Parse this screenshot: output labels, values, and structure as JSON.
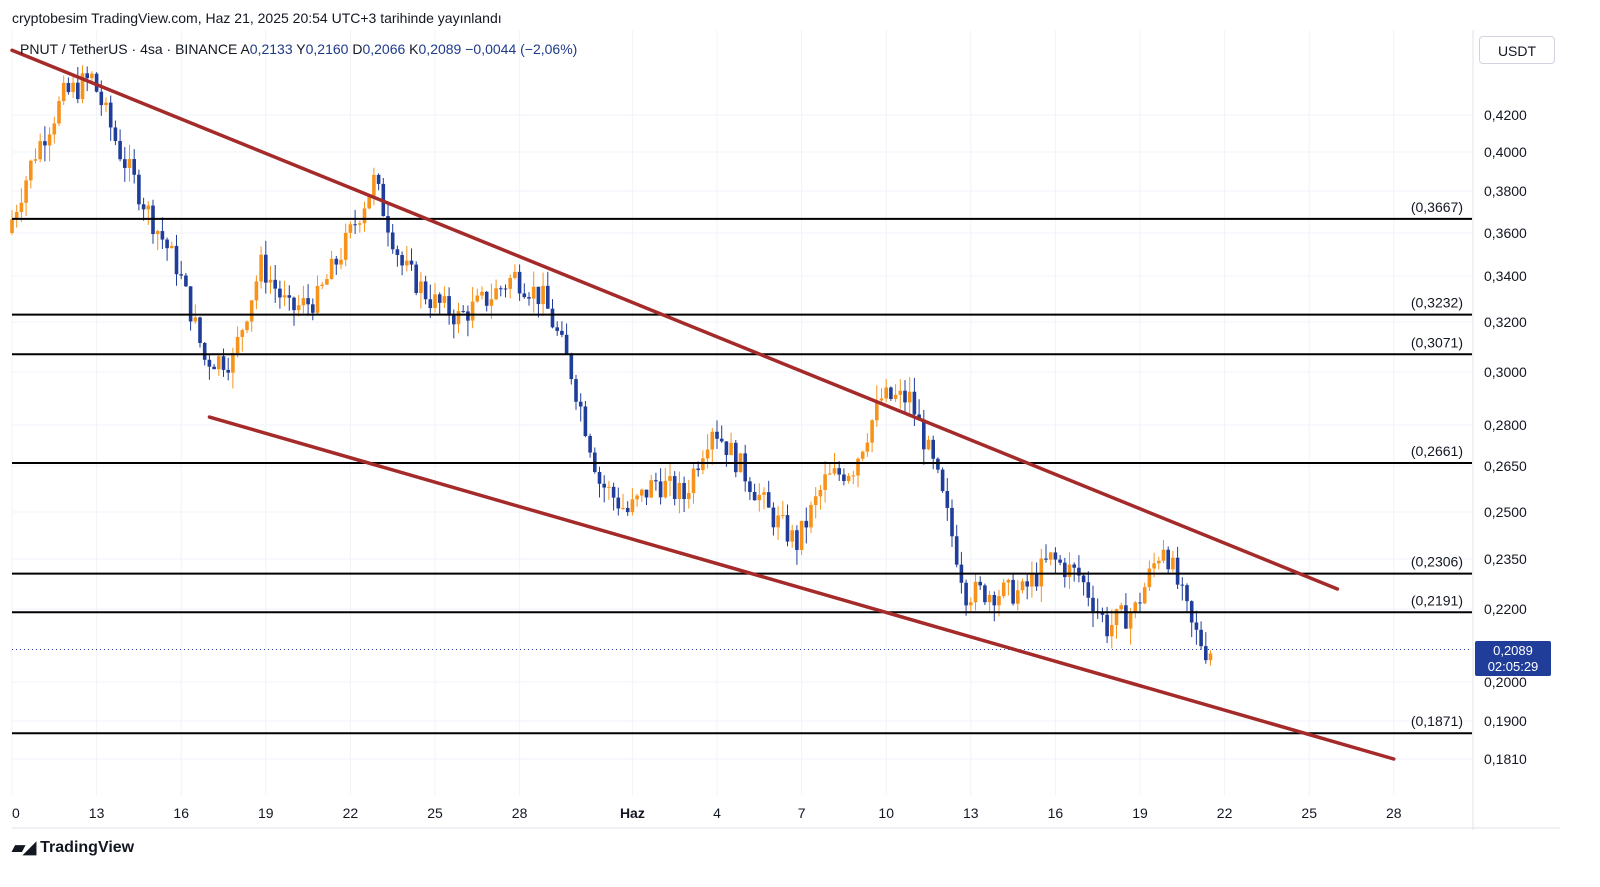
{
  "header": {
    "publisher_line": "cryptobesim TradingView.com, Haz 21, 2025 20:54 UTC+3 tarihinde yayınlandı"
  },
  "legend": {
    "symbol": "PNUT / TetherUS · 4sa · BINANCE",
    "open_label": "A",
    "open": "0,2133",
    "high_label": "Y",
    "high": "0,2160",
    "low_label": "D",
    "low": "0,2066",
    "close_label": "K",
    "close": "0,2089",
    "change": "−0,0044 (−2,06%)"
  },
  "currency": "USDT",
  "price_badge": {
    "price": "0,2089",
    "countdown": "02:05:29"
  },
  "brand": {
    "name": "TradingView",
    "logo_icon": "tradingview-logo-icon"
  },
  "colors": {
    "up": "#f7931a",
    "down": "#1f3d99",
    "trendline": "#a52a2a",
    "level": "#000000",
    "badge": "#1f3d99"
  },
  "chart_data": {
    "type": "candlestick",
    "x_ticks": [
      "0",
      "13",
      "16",
      "19",
      "22",
      "25",
      "28",
      "Haz",
      "4",
      "7",
      "10",
      "13",
      "16",
      "19",
      "22",
      "25",
      "28"
    ],
    "y_ticks": [
      "0,4200",
      "0,4000",
      "0,3800",
      "0,3600",
      "0,3400",
      "0,3200",
      "0,3000",
      "0,2800",
      "0,2650",
      "0,2500",
      "0,2350",
      "0,2200",
      "0,2000",
      "0,1900",
      "0,1810"
    ],
    "levels": [
      "(0,3667)",
      "(0,3232)",
      "(0,3071)",
      "(0,2661)",
      "(0,2306)",
      "(0,2191)",
      "(0,1871)"
    ],
    "current_price": "0,2089",
    "trendlines": [
      {
        "role": "upper",
        "from": [
          "May 10",
          0.455
        ],
        "to": [
          "Jun 26",
          0.226
        ]
      },
      {
        "role": "lower",
        "from": [
          "May 17",
          0.283
        ],
        "to": [
          "Jun 28",
          0.181
        ]
      }
    ],
    "price_path_days": [
      [
        "May 10",
        0.36
      ],
      [
        "May 11",
        0.4
      ],
      [
        "May 12",
        0.43
      ],
      [
        "May 13",
        0.44
      ],
      [
        "May 14",
        0.4
      ],
      [
        "May 15",
        0.37
      ],
      [
        "May 16",
        0.345
      ],
      [
        "May 17",
        0.305
      ],
      [
        "May 18",
        0.305
      ],
      [
        "May 19",
        0.345
      ],
      [
        "May 20",
        0.325
      ],
      [
        "May 21",
        0.33
      ],
      [
        "May 22",
        0.355
      ],
      [
        "May 23",
        0.385
      ],
      [
        "May 24",
        0.345
      ],
      [
        "May 25",
        0.33
      ],
      [
        "May 26",
        0.322
      ],
      [
        "May 27",
        0.33
      ],
      [
        "May 28",
        0.34
      ],
      [
        "May 29",
        0.33
      ],
      [
        "May 30",
        0.3
      ],
      [
        "May 31",
        0.26
      ],
      [
        "Jun 1",
        0.25
      ],
      [
        "Jun 2",
        0.26
      ],
      [
        "Jun 3",
        0.255
      ],
      [
        "Jun 4",
        0.28
      ],
      [
        "Jun 5",
        0.265
      ],
      [
        "Jun 6",
        0.25
      ],
      [
        "Jun 7",
        0.24
      ],
      [
        "Jun 8",
        0.26
      ],
      [
        "Jun 9",
        0.265
      ],
      [
        "Jun 10",
        0.29
      ],
      [
        "Jun 11",
        0.29
      ],
      [
        "Jun 12",
        0.26
      ],
      [
        "Jun 13",
        0.225
      ],
      [
        "Jun 14",
        0.225
      ],
      [
        "Jun 15",
        0.225
      ],
      [
        "Jun 16",
        0.235
      ],
      [
        "Jun 17",
        0.23
      ],
      [
        "Jun 18",
        0.215
      ],
      [
        "Jun 19",
        0.22
      ],
      [
        "Jun 20",
        0.24
      ],
      [
        "Jun 21",
        0.215
      ],
      [
        "Jun 21.5",
        0.2089
      ]
    ]
  }
}
